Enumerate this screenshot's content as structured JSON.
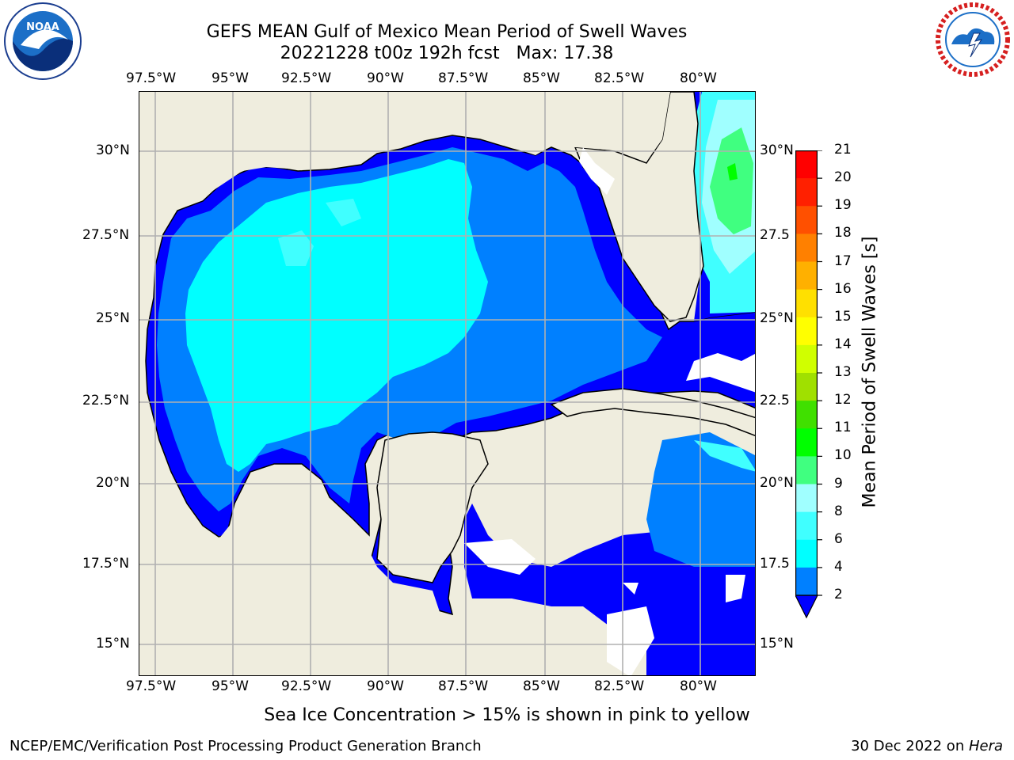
{
  "header": {
    "title_line1": "GEFS MEAN Gulf of Mexico Mean Period of Swell Waves",
    "title_line2": "20221228 t00z 192h fcst   Max: 17.38"
  },
  "axes": {
    "lon_labels": [
      "97.5°W",
      "95°W",
      "92.5°W",
      "90°W",
      "87.5°W",
      "85°W",
      "82.5°W",
      "80°W"
    ],
    "lat_labels_left": [
      "30°N",
      "27.5°N",
      "25°N",
      "22.5°N",
      "20°N",
      "17.5°N",
      "15°N"
    ],
    "lat_labels_right": [
      "30°N",
      "27.5",
      "25°N",
      "22.5",
      "20°N",
      "17.5",
      "15°N"
    ]
  },
  "colorbar": {
    "label": "Mean Period of Swell Waves [s]",
    "ticks": [
      "2",
      "4",
      "6",
      "8",
      "9",
      "10",
      "11",
      "12",
      "13",
      "14",
      "15",
      "16",
      "17",
      "18",
      "19",
      "20",
      "21"
    ],
    "colors": [
      "#0000ff",
      "#0080ff",
      "#00ffff",
      "#40ffff",
      "#a0ffff",
      "#40ff80",
      "#00ff00",
      "#40e000",
      "#a0e000",
      "#d0ff00",
      "#ffff00",
      "#ffe000",
      "#ffb000",
      "#ff8000",
      "#ff5000",
      "#ff2000",
      "#ff0000"
    ]
  },
  "notes": {
    "sea_ice": "Sea Ice Concentration > 15% is shown in pink to yellow"
  },
  "footer": {
    "left": "NCEP/EMC/Verification Post Processing Product Generation Branch",
    "right_prefix": "30 Dec 2022 on ",
    "right_host": "Hera"
  },
  "logos": {
    "noaa_text": "NOAA",
    "nws_text": "NATIONAL WEATHER SERVICE"
  }
}
